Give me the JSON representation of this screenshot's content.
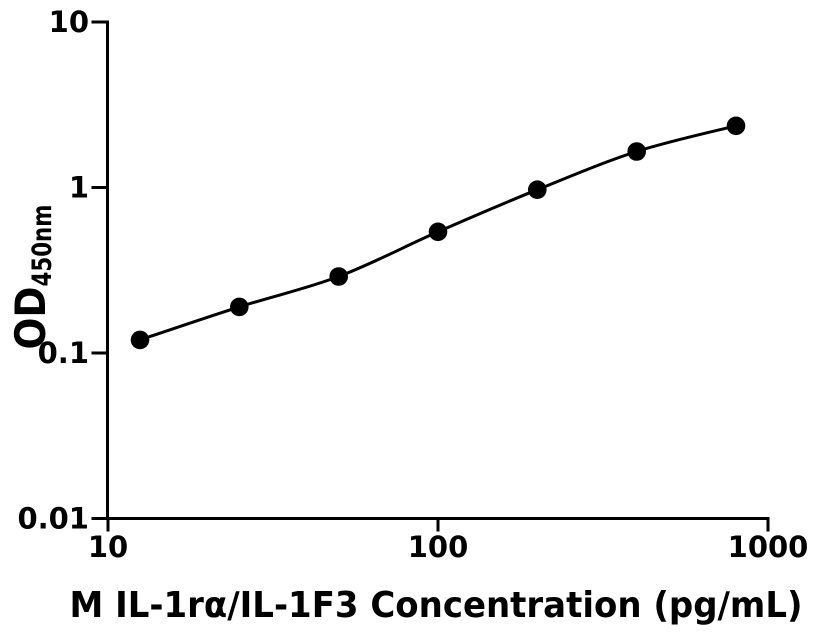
{
  "figure": {
    "background_color": "#ffffff"
  },
  "chart_data": {
    "type": "scatter",
    "subtype": "elisa-standard-curve",
    "title": "",
    "xlabel": "M IL-1rα/IL-1F3 Concentration (pg/mL)",
    "ylabel": "OD",
    "ylabel_subscript": "450nm",
    "xscale": "log10",
    "yscale": "log10",
    "xlim": [
      10,
      1000
    ],
    "ylim": [
      0.01,
      10
    ],
    "x_ticks": {
      "values": [
        10,
        100,
        1000
      ],
      "labels": [
        "10",
        "100",
        "1000"
      ]
    },
    "y_ticks": {
      "values": [
        10,
        1,
        0.1,
        0.01
      ],
      "labels": [
        "10",
        "1",
        "0.1",
        "0.01"
      ]
    },
    "grid": false,
    "legend": false,
    "axis_color": "#000000",
    "text_color": "#000000",
    "series": [
      {
        "marker": "filled-circle",
        "marker_color": "#000000",
        "line_color": "#000000",
        "line_style": "smooth",
        "points": [
          {
            "concentration_pg_ml": 12.5,
            "od": 0.12
          },
          {
            "concentration_pg_ml": 25,
            "od": 0.19
          },
          {
            "concentration_pg_ml": 50,
            "od": 0.29
          },
          {
            "concentration_pg_ml": 100,
            "od": 0.54
          },
          {
            "concentration_pg_ml": 200,
            "od": 0.97
          },
          {
            "concentration_pg_ml": 400,
            "od": 1.65
          },
          {
            "concentration_pg_ml": 800,
            "od": 2.36
          }
        ]
      }
    ]
  }
}
